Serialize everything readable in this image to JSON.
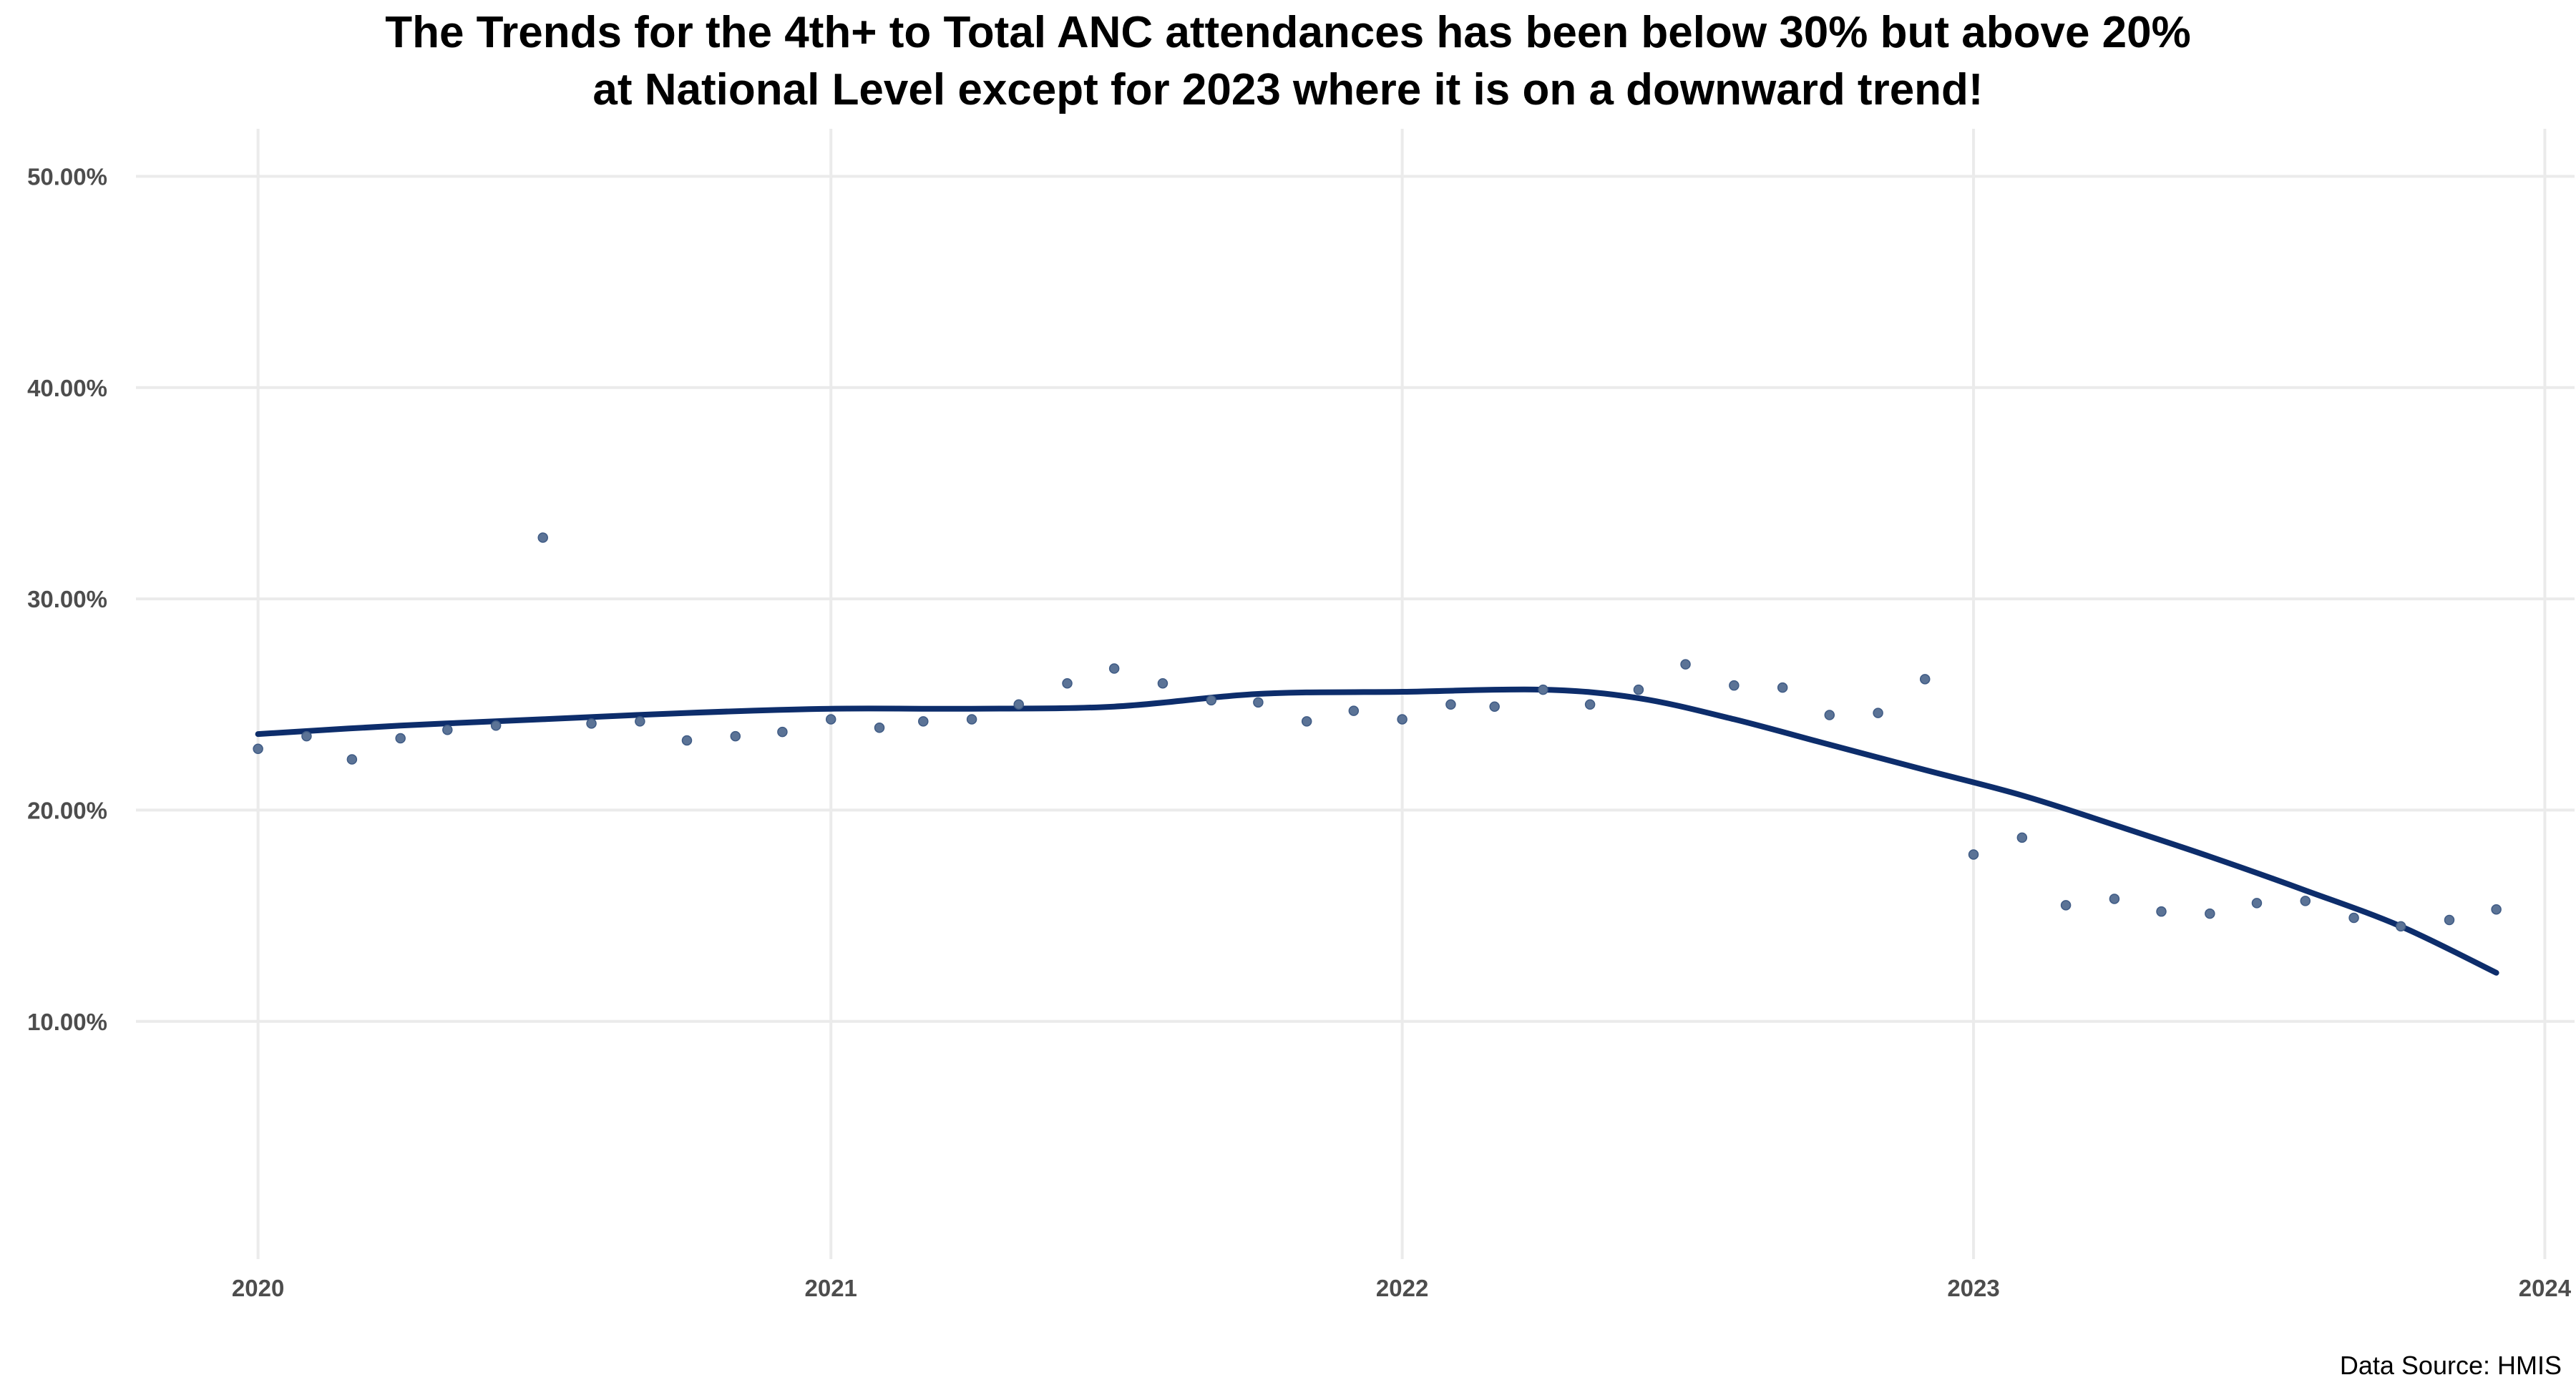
{
  "chart_data": {
    "type": "scatter",
    "title_lines": [
      "The Trends for the 4th+ to Total ANC attendances has been below 30% but above 20%",
      "at National Level except for 2023 where it is on a downward trend!"
    ],
    "xlabel": "",
    "ylabel": "",
    "xlim": [
      "2019-10-15",
      "2024-01-20"
    ],
    "ylim": [
      -0.0125,
      0.5225
    ],
    "x_ticks": [
      "2020",
      "2021",
      "2022",
      "2023",
      "2024"
    ],
    "x_tick_dates": [
      "2020-01-01",
      "2021-01-01",
      "2022-01-01",
      "2023-01-01",
      "2024-01-01"
    ],
    "y_ticks": [
      0.1,
      0.2,
      0.3,
      0.4,
      0.5
    ],
    "y_tick_labels": [
      "10.00%",
      "20.00%",
      "30.00%",
      "40.00%",
      "50.00%"
    ],
    "grid": true,
    "legend": "none",
    "point_color": "#5b7396",
    "trend_color": "#0d2d6b",
    "gridline_color": "#ebebeb",
    "points": {
      "x": [
        "2020-01-01",
        "2020-02-01",
        "2020-03-01",
        "2020-04-01",
        "2020-05-01",
        "2020-06-01",
        "2020-07-01",
        "2020-08-01",
        "2020-09-01",
        "2020-10-01",
        "2020-11-01",
        "2020-12-01",
        "2021-01-01",
        "2021-02-01",
        "2021-03-01",
        "2021-04-01",
        "2021-05-01",
        "2021-06-01",
        "2021-07-01",
        "2021-08-01",
        "2021-09-01",
        "2021-10-01",
        "2021-11-01",
        "2021-12-01",
        "2022-01-01",
        "2022-02-01",
        "2022-03-01",
        "2022-04-01",
        "2022-05-01",
        "2022-06-01",
        "2022-07-01",
        "2022-08-01",
        "2022-09-01",
        "2022-10-01",
        "2022-11-01",
        "2022-12-01",
        "2023-01-01",
        "2023-02-01",
        "2023-03-01",
        "2023-04-01",
        "2023-05-01",
        "2023-06-01",
        "2023-07-01",
        "2023-08-01",
        "2023-09-01",
        "2023-10-01",
        "2023-11-01",
        "2023-12-01"
      ],
      "y": [
        0.229,
        0.235,
        0.224,
        0.234,
        0.238,
        0.24,
        0.329,
        0.241,
        0.242,
        0.233,
        0.235,
        0.237,
        0.243,
        0.239,
        0.242,
        0.243,
        0.25,
        0.26,
        0.267,
        0.26,
        0.252,
        0.251,
        0.242,
        0.247,
        0.243,
        0.25,
        0.249,
        0.257,
        0.25,
        0.257,
        0.269,
        0.259,
        0.258,
        0.245,
        0.246,
        0.262,
        0.179,
        0.187,
        0.155,
        0.158,
        0.152,
        0.151,
        0.156,
        0.157,
        0.149,
        0.145,
        0.148,
        0.153
      ]
    },
    "trend": {
      "x": [
        "2020-01-01",
        "2020-04-01",
        "2020-07-01",
        "2020-10-01",
        "2021-01-01",
        "2021-04-01",
        "2021-07-01",
        "2021-10-01",
        "2022-01-01",
        "2022-04-01",
        "2022-06-01",
        "2022-08-01",
        "2022-10-01",
        "2022-12-01",
        "2023-02-01",
        "2023-04-01",
        "2023-06-01",
        "2023-08-01",
        "2023-10-01",
        "2023-12-01"
      ],
      "y": [
        0.236,
        0.24,
        0.243,
        0.246,
        0.248,
        0.248,
        0.249,
        0.255,
        0.256,
        0.257,
        0.253,
        0.243,
        0.231,
        0.219,
        0.207,
        0.193,
        0.178,
        0.162,
        0.145,
        0.123
      ]
    }
  },
  "source_note": "Data Source: HMIS"
}
